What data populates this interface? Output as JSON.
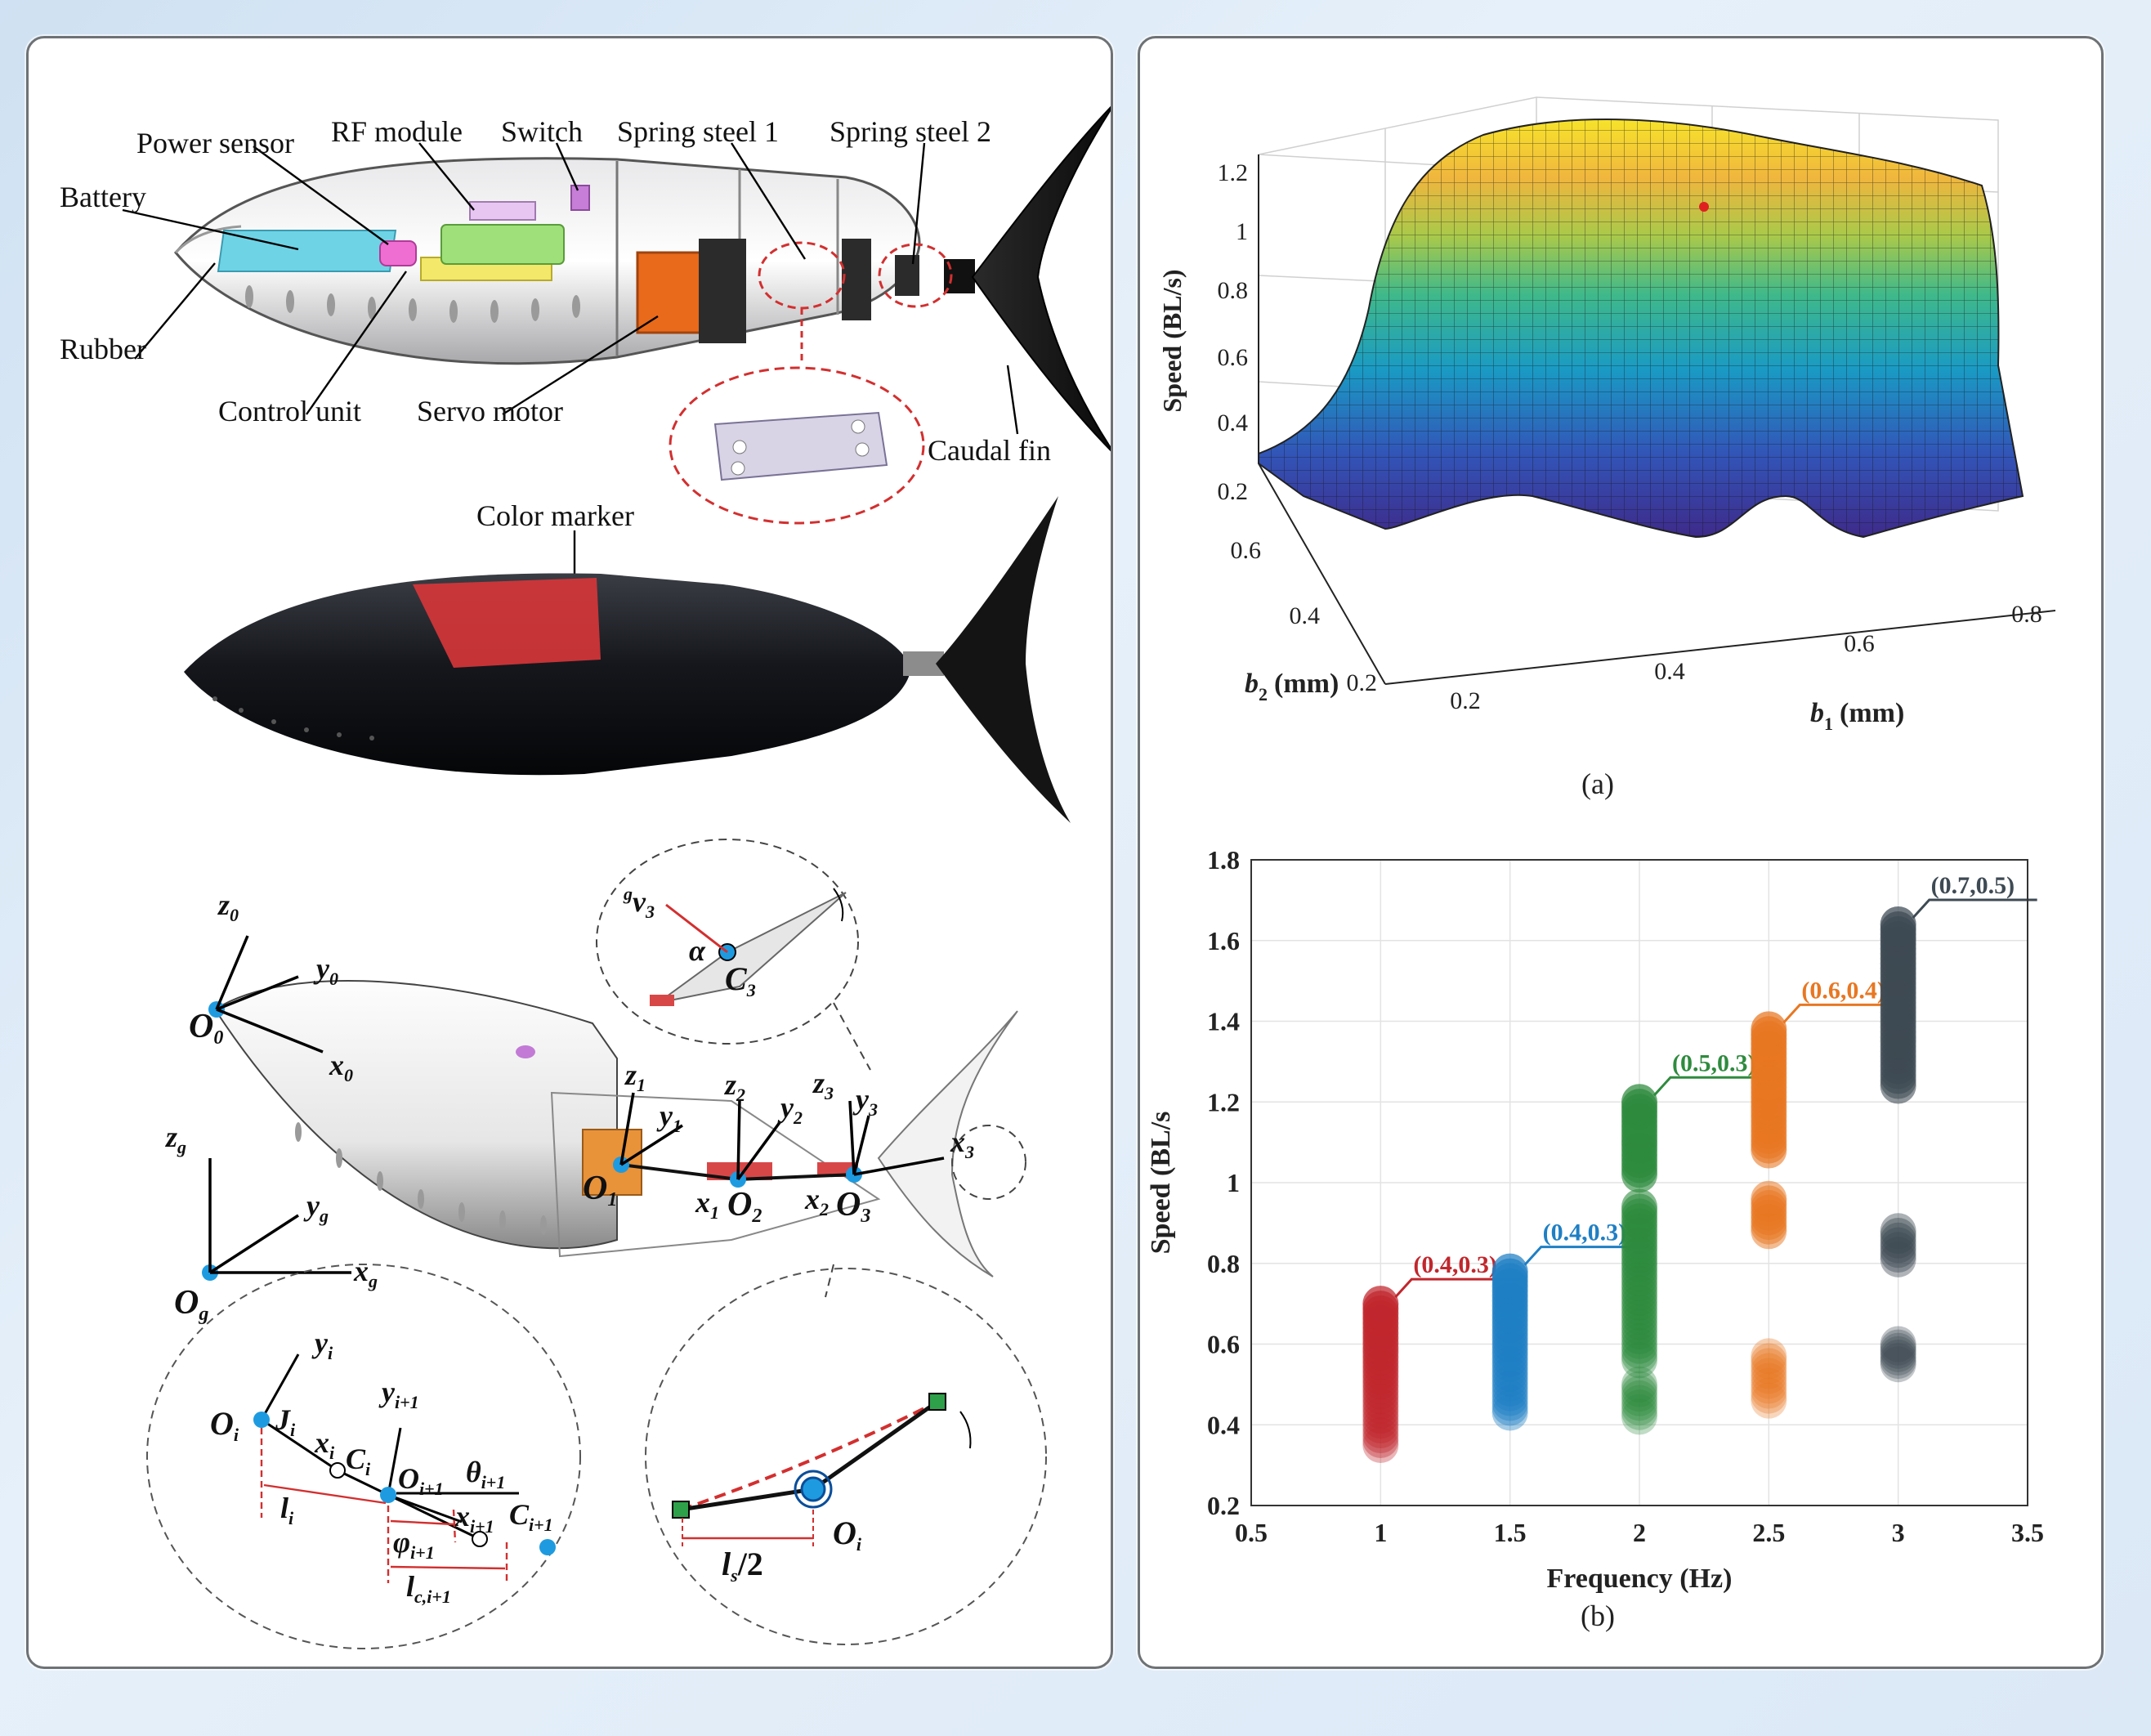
{
  "left": {
    "component_labels": {
      "power_sensor": "Power sensor",
      "rf_module": "RF module",
      "switch": "Switch",
      "spring_steel_1": "Spring steel 1",
      "spring_steel_2": "Spring steel 2",
      "battery": "Battery",
      "rubber": "Rubber",
      "control_unit": "Control unit",
      "servo_motor": "Servo motor",
      "caudal_fin": "Caudal fin",
      "color_marker": "Color marker"
    },
    "frames": {
      "z0": "z",
      "z0_sub": "0",
      "y0": "y",
      "y0_sub": "0",
      "x0": "x",
      "x0_sub": "0",
      "o0": "O",
      "o0_sub": "0",
      "zg": "z",
      "zg_sub": "g",
      "yg": "y",
      "yg_sub": "g",
      "xg": "x",
      "xg_sub": "g",
      "og": "O",
      "og_sub": "g",
      "z1": "z",
      "z1_sub": "1",
      "y1": "y",
      "y1_sub": "1",
      "z2": "z",
      "z2_sub": "2",
      "y2": "y",
      "y2_sub": "2",
      "z3": "z",
      "z3_sub": "3",
      "y3": "y",
      "y3_sub": "3",
      "x3": "x",
      "x3_sub": "3",
      "o1": "O",
      "o1_sub": "1",
      "x1": "x",
      "x1_sub": "1",
      "o2": "O",
      "o2_sub": "2",
      "x2": "x",
      "x2_sub": "2",
      "o3": "O",
      "o3_sub": "3",
      "gv3_pre": "g",
      "gv3": "v",
      "gv3_sub": "3",
      "alpha": "α",
      "c3": "C",
      "c3_sub": "3"
    },
    "detail_joint": {
      "yi": "y",
      "yi_sub": "i",
      "oi": "O",
      "oi_sub": "i",
      "ji": "J",
      "ji_sub": "i",
      "xi": "x",
      "xi_sub": "i",
      "ci": "C",
      "ci_sub": "i",
      "yi1": "y",
      "yi1_sub": "i+1",
      "oi1": "O",
      "oi1_sub": "i+1",
      "theta": "θ",
      "theta_sub": "i+1",
      "li": "l",
      "li_sub": "i",
      "xi1": "x",
      "xi1_sub": "i+1",
      "ci1": "C",
      "ci1_sub": "i+1",
      "phi": "φ",
      "phi_sub": "i+1",
      "lc": "l",
      "lc_sub": "c,i+1"
    },
    "detail_spring": {
      "ls": "l",
      "ls_sub": "s",
      "ls_rest": "/2",
      "oi": "O",
      "oi_sub": "i"
    }
  },
  "right": {
    "surface": {
      "zlabel": "Speed (BL/s)",
      "z_ticks": [
        "0.2",
        "0.4",
        "0.6",
        "0.8",
        "1",
        "1.2"
      ],
      "b2_label": "b",
      "b2_sub": "2",
      "b2_unit": "(mm)",
      "b2_ticks": [
        "0.6",
        "0.4",
        "0.2"
      ],
      "b1_label": "b",
      "b1_sub": "1",
      "b1_unit": "(mm)",
      "b1_ticks": [
        "0.2",
        "0.4",
        "0.6",
        "0.8"
      ],
      "caption": "(a)"
    },
    "caption_b": "(b)"
  },
  "chart_data": {
    "type": "scatter",
    "title": "",
    "xlabel": "Frequency (Hz)",
    "ylabel": "Speed (BL/s",
    "xlim": [
      0.5,
      3.5
    ],
    "ylim": [
      0.2,
      1.8
    ],
    "x_ticks": [
      "0.5",
      "1",
      "1.5",
      "2",
      "2.5",
      "3",
      "3.5"
    ],
    "y_ticks": [
      "0.2",
      "0.4",
      "0.6",
      "0.8",
      "1",
      "1.2",
      "1.4",
      "1.6",
      "1.8"
    ],
    "grid": true,
    "series": [
      {
        "name": "(0.4,0.3)",
        "color": "#c0272d",
        "x": 1.0,
        "y_ranges": [
          [
            0.35,
            0.7
          ]
        ],
        "max": 0.7
      },
      {
        "name": "(0.4,0.3)",
        "color": "#1f7fc4",
        "x": 1.5,
        "y_ranges": [
          [
            0.43,
            0.78
          ]
        ],
        "max": 0.78
      },
      {
        "name": "(0.5,0.3)",
        "color": "#2e8b3e",
        "x": 2.0,
        "y_ranges": [
          [
            0.42,
            0.5
          ],
          [
            0.56,
            0.94
          ],
          [
            1.02,
            1.2
          ]
        ],
        "max": 1.2
      },
      {
        "name": "(0.6,0.4)",
        "color": "#e87722",
        "x": 2.5,
        "y_ranges": [
          [
            0.46,
            0.57
          ],
          [
            0.88,
            0.96
          ],
          [
            1.08,
            1.38
          ]
        ],
        "max": 1.38
      },
      {
        "name": "(0.7,0.5)",
        "color": "#3e4a53",
        "x": 3.0,
        "y_ranges": [
          [
            0.55,
            0.6
          ],
          [
            0.81,
            0.88
          ],
          [
            1.24,
            1.64
          ]
        ],
        "max": 1.64
      }
    ]
  }
}
